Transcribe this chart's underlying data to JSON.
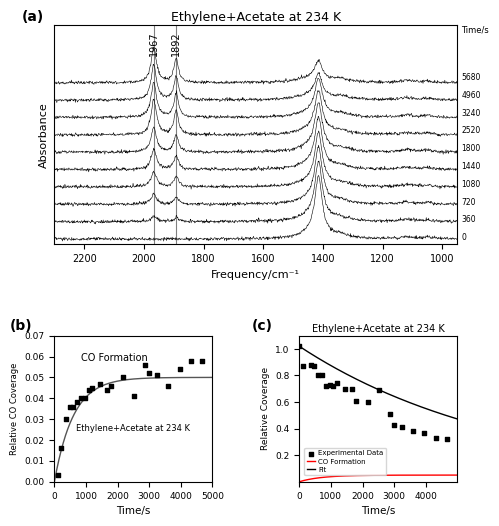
{
  "title_a": "Ethylene+Acetate at 234 K",
  "panel_a": {
    "times": [
      0,
      360,
      720,
      1080,
      1440,
      1800,
      2520,
      3240,
      4960,
      5680
    ],
    "freq_min": 950,
    "freq_max": 2300,
    "peak1_freq": 1967,
    "peak2_freq": 1892,
    "peak3_freq": 1415,
    "xlabel": "Frequency/cm⁻¹",
    "ylabel": "Absorbance"
  },
  "panel_b": {
    "scatter_x": [
      100,
      200,
      360,
      480,
      600,
      720,
      840,
      960,
      1080,
      1200,
      1440,
      1680,
      1800,
      2160,
      2520,
      2880,
      3000,
      3240,
      3600,
      3960,
      4320,
      4680
    ],
    "scatter_y": [
      0.003,
      0.016,
      0.03,
      0.036,
      0.036,
      0.038,
      0.04,
      0.04,
      0.044,
      0.045,
      0.047,
      0.044,
      0.046,
      0.05,
      0.041,
      0.056,
      0.052,
      0.051,
      0.046,
      0.054,
      0.058,
      0.058
    ],
    "xlabel": "Time/s",
    "ylabel": "Relative CO Coverage",
    "ylim": [
      0,
      0.07
    ],
    "xlim": [
      0,
      5000
    ],
    "label_text": "CO Formation",
    "sublabel": "Ethylene+Acetate at 234 K"
  },
  "panel_c": {
    "scatter_x": [
      0,
      120,
      360,
      480,
      600,
      720,
      840,
      960,
      1080,
      1200,
      1440,
      1680,
      1800,
      2160,
      2520,
      2880,
      3000,
      3240,
      3600,
      3960,
      4320,
      4680
    ],
    "scatter_y": [
      1.02,
      0.87,
      0.88,
      0.87,
      0.8,
      0.8,
      0.72,
      0.73,
      0.72,
      0.74,
      0.7,
      0.7,
      0.61,
      0.6,
      0.69,
      0.51,
      0.43,
      0.41,
      0.38,
      0.37,
      0.33,
      0.32
    ],
    "xlabel": "Time/s",
    "ylabel": "Relative Coverage",
    "xlim": [
      0,
      5000
    ],
    "title": "Ethylene+Acetate at 234 K",
    "legend_labels": [
      "Experimental Data",
      "CO Formation",
      "Fit"
    ]
  },
  "background_color": "#ffffff"
}
